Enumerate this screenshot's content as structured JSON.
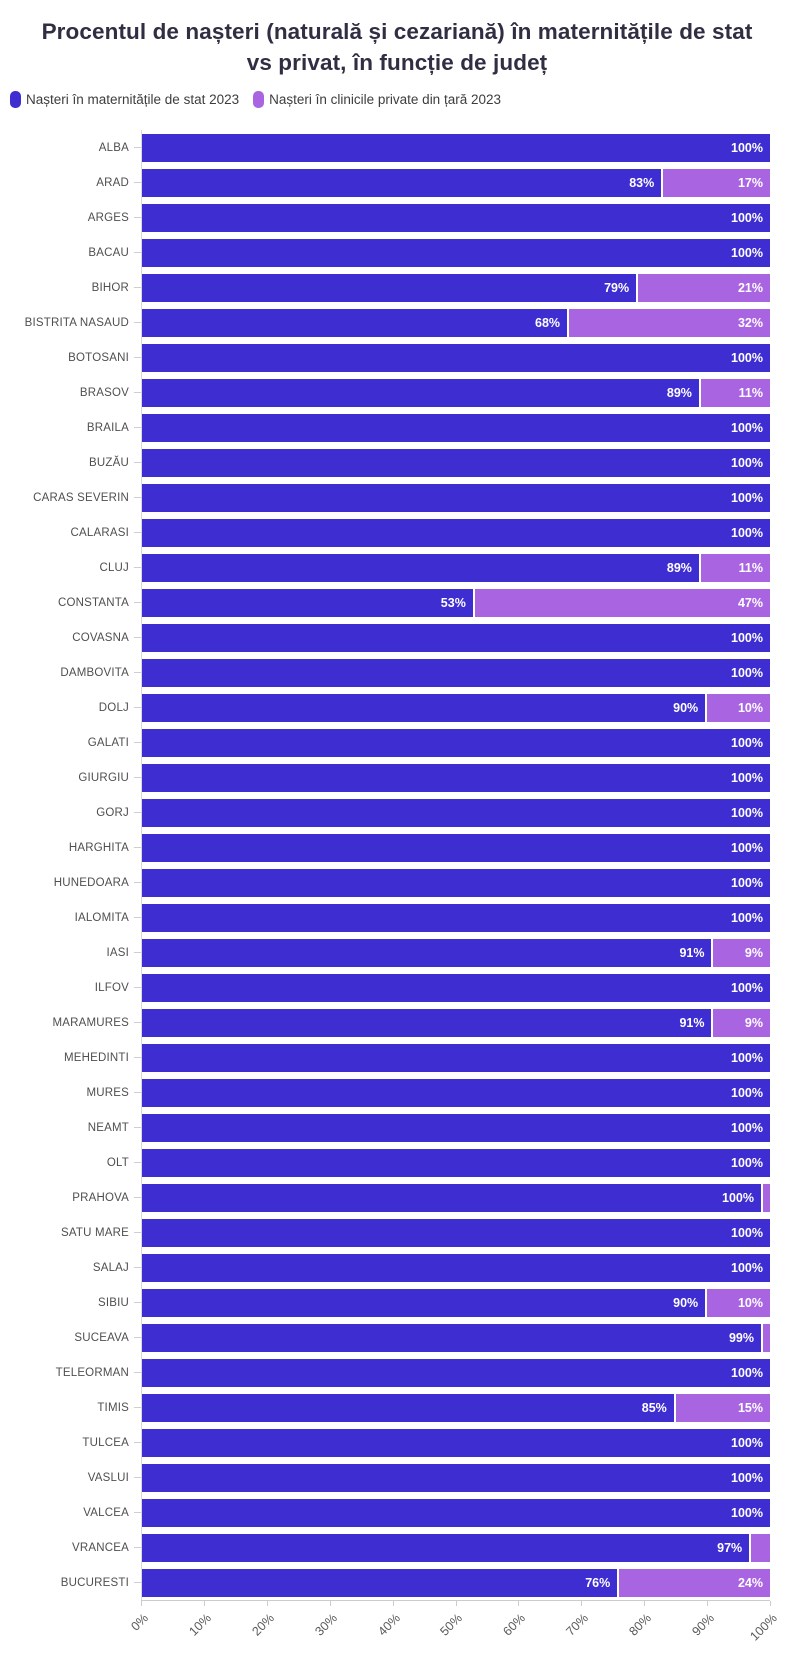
{
  "chart_data": {
    "type": "bar",
    "orientation": "horizontal",
    "stacked": true,
    "title": "Procentul de nașteri (naturală și cezariană) în maternitățile de stat vs privat, în funcție de județ",
    "legend_position": "top-left",
    "xlim": [
      0,
      100
    ],
    "x_ticks": [
      "0%",
      "10%",
      "20%",
      "30%",
      "40%",
      "50%",
      "60%",
      "70%",
      "80%",
      "90%",
      "100%"
    ],
    "series": [
      {
        "name": "Nașteri în maternitățile de stat 2023",
        "color": "#3e2dd1"
      },
      {
        "name": "Nașteri în clinicile private din țară 2023",
        "color": "#a964e2"
      }
    ],
    "rows": [
      {
        "county": "ALBA",
        "state": 100,
        "private": 0,
        "state_label": "100%",
        "private_label": ""
      },
      {
        "county": "ARAD",
        "state": 83,
        "private": 17,
        "state_label": "83%",
        "private_label": "17%"
      },
      {
        "county": "ARGES",
        "state": 100,
        "private": 0,
        "state_label": "100%",
        "private_label": ""
      },
      {
        "county": "BACAU",
        "state": 100,
        "private": 0,
        "state_label": "100%",
        "private_label": ""
      },
      {
        "county": "BIHOR",
        "state": 79,
        "private": 21,
        "state_label": "79%",
        "private_label": "21%"
      },
      {
        "county": "BISTRITA NASAUD",
        "state": 68,
        "private": 32,
        "state_label": "68%",
        "private_label": "32%"
      },
      {
        "county": "BOTOSANI",
        "state": 100,
        "private": 0,
        "state_label": "100%",
        "private_label": ""
      },
      {
        "county": "BRASOV",
        "state": 89,
        "private": 11,
        "state_label": "89%",
        "private_label": "11%"
      },
      {
        "county": "BRAILA",
        "state": 100,
        "private": 0,
        "state_label": "100%",
        "private_label": ""
      },
      {
        "county": "BUZĂU",
        "state": 100,
        "private": 0,
        "state_label": "100%",
        "private_label": ""
      },
      {
        "county": "CARAS SEVERIN",
        "state": 100,
        "private": 0,
        "state_label": "100%",
        "private_label": ""
      },
      {
        "county": "CALARASI",
        "state": 100,
        "private": 0,
        "state_label": "100%",
        "private_label": ""
      },
      {
        "county": "CLUJ",
        "state": 89,
        "private": 11,
        "state_label": "89%",
        "private_label": "11%"
      },
      {
        "county": "CONSTANTA",
        "state": 53,
        "private": 47,
        "state_label": "53%",
        "private_label": "47%"
      },
      {
        "county": "COVASNA",
        "state": 100,
        "private": 0,
        "state_label": "100%",
        "private_label": ""
      },
      {
        "county": "DAMBOVITA",
        "state": 100,
        "private": 0,
        "state_label": "100%",
        "private_label": ""
      },
      {
        "county": "DOLJ",
        "state": 90,
        "private": 10,
        "state_label": "90%",
        "private_label": "10%"
      },
      {
        "county": "GALATI",
        "state": 100,
        "private": 0,
        "state_label": "100%",
        "private_label": ""
      },
      {
        "county": "GIURGIU",
        "state": 100,
        "private": 0,
        "state_label": "100%",
        "private_label": ""
      },
      {
        "county": "GORJ",
        "state": 100,
        "private": 0,
        "state_label": "100%",
        "private_label": ""
      },
      {
        "county": "HARGHITA",
        "state": 100,
        "private": 0,
        "state_label": "100%",
        "private_label": ""
      },
      {
        "county": "HUNEDOARA",
        "state": 100,
        "private": 0,
        "state_label": "100%",
        "private_label": ""
      },
      {
        "county": "IALOMITA",
        "state": 100,
        "private": 0,
        "state_label": "100%",
        "private_label": ""
      },
      {
        "county": "IASI",
        "state": 91,
        "private": 9,
        "state_label": "91%",
        "private_label": "9%"
      },
      {
        "county": "ILFOV",
        "state": 100,
        "private": 0,
        "state_label": "100%",
        "private_label": ""
      },
      {
        "county": "MARAMURES",
        "state": 91,
        "private": 9,
        "state_label": "91%",
        "private_label": "9%"
      },
      {
        "county": "MEHEDINTI",
        "state": 100,
        "private": 0,
        "state_label": "100%",
        "private_label": ""
      },
      {
        "county": "MURES",
        "state": 100,
        "private": 0,
        "state_label": "100%",
        "private_label": ""
      },
      {
        "county": "NEAMT",
        "state": 100,
        "private": 0,
        "state_label": "100%",
        "private_label": ""
      },
      {
        "county": "OLT",
        "state": 100,
        "private": 0,
        "state_label": "100%",
        "private_label": ""
      },
      {
        "county": "PRAHOVA",
        "state": 99.6,
        "private": 0.4,
        "state_label": "100%",
        "private_label": ""
      },
      {
        "county": "SATU MARE",
        "state": 100,
        "private": 0,
        "state_label": "100%",
        "private_label": ""
      },
      {
        "county": "SALAJ",
        "state": 100,
        "private": 0,
        "state_label": "100%",
        "private_label": ""
      },
      {
        "county": "SIBIU",
        "state": 90,
        "private": 10,
        "state_label": "90%",
        "private_label": "10%"
      },
      {
        "county": "SUCEAVA",
        "state": 99,
        "private": 1,
        "state_label": "99%",
        "private_label": ""
      },
      {
        "county": "TELEORMAN",
        "state": 100,
        "private": 0,
        "state_label": "100%",
        "private_label": ""
      },
      {
        "county": "TIMIS",
        "state": 85,
        "private": 15,
        "state_label": "85%",
        "private_label": "15%"
      },
      {
        "county": "TULCEA",
        "state": 100,
        "private": 0,
        "state_label": "100%",
        "private_label": ""
      },
      {
        "county": "VASLUI",
        "state": 100,
        "private": 0,
        "state_label": "100%",
        "private_label": ""
      },
      {
        "county": "VALCEA",
        "state": 100,
        "private": 0,
        "state_label": "100%",
        "private_label": ""
      },
      {
        "county": "VRANCEA",
        "state": 97,
        "private": 3,
        "state_label": "97%",
        "private_label": ""
      },
      {
        "county": "BUCURESTI",
        "state": 76,
        "private": 24,
        "state_label": "76%",
        "private_label": "24%"
      }
    ]
  },
  "colors": {
    "state_bar": "#3e2dd1",
    "private_bar": "#a964e2",
    "title_text": "#302e42",
    "axis_line": "#cccccc",
    "axis_text": "#595959",
    "value_text": "#ffffff"
  }
}
